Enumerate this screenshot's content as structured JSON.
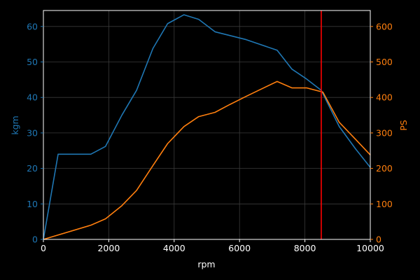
{
  "chart_data": {
    "type": "line",
    "xlabel": "rpm",
    "ylabel_left": "kgm",
    "ylabel_right": "PS",
    "xlim": [
      0,
      10000
    ],
    "ylim_left": [
      0,
      64.5
    ],
    "ylim_right": [
      0,
      645
    ],
    "grid": true,
    "x_ticks": [
      0,
      2000,
      4000,
      6000,
      8000,
      10000
    ],
    "y_left_ticks": [
      0,
      10,
      20,
      30,
      40,
      50,
      60
    ],
    "y_right_ticks": [
      0,
      100,
      200,
      300,
      400,
      500,
      600
    ],
    "vertical_line": {
      "x": 8500,
      "color": "#ff0000"
    },
    "series": [
      {
        "axis": "left",
        "color": "#1f77b4",
        "points": [
          [
            0,
            0
          ],
          [
            450,
            24
          ],
          [
            1450,
            24
          ],
          [
            1900,
            26.2
          ],
          [
            2400,
            35
          ],
          [
            2850,
            42
          ],
          [
            3350,
            53.8
          ],
          [
            3800,
            60.8
          ],
          [
            4300,
            63.3
          ],
          [
            4750,
            62
          ],
          [
            5250,
            58.5
          ],
          [
            6200,
            56.3
          ],
          [
            7150,
            53.3
          ],
          [
            7600,
            48
          ],
          [
            8050,
            45.2
          ],
          [
            8500,
            42
          ],
          [
            9050,
            31.8
          ],
          [
            9550,
            25.5
          ],
          [
            10000,
            20.3
          ]
        ]
      },
      {
        "axis": "right",
        "color": "#ff7f0e",
        "points": [
          [
            0,
            0
          ],
          [
            1450,
            40
          ],
          [
            1900,
            58
          ],
          [
            2400,
            95
          ],
          [
            2850,
            138
          ],
          [
            3350,
            208
          ],
          [
            3800,
            270
          ],
          [
            4300,
            318
          ],
          [
            4750,
            346
          ],
          [
            5250,
            358
          ],
          [
            5700,
            380
          ],
          [
            6200,
            403
          ],
          [
            6650,
            423
          ],
          [
            7150,
            445
          ],
          [
            7600,
            427
          ],
          [
            8050,
            427
          ],
          [
            8550,
            415
          ],
          [
            9050,
            330
          ],
          [
            9550,
            282
          ],
          [
            10000,
            238
          ]
        ]
      }
    ]
  }
}
